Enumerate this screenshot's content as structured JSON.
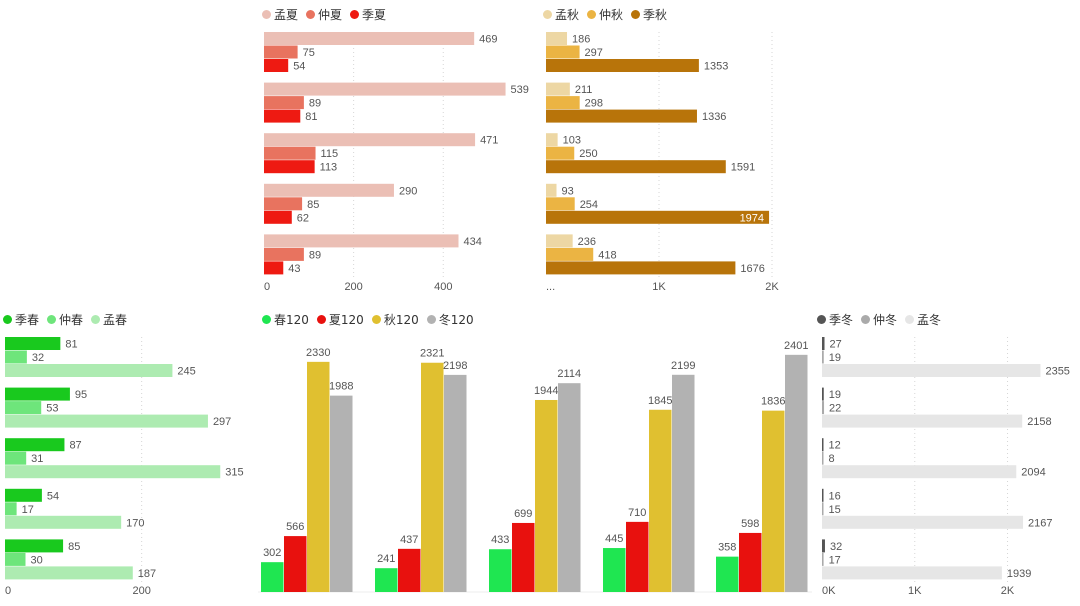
{
  "chart_data": [
    {
      "id": "summer",
      "type": "bar",
      "orientation": "horizontal",
      "series": [
        {
          "name": "孟夏",
          "color": "#EBBFB5",
          "values": [
            469,
            539,
            471,
            290,
            434
          ]
        },
        {
          "name": "仲夏",
          "color": "#E8735F",
          "values": [
            75,
            89,
            115,
            85,
            89
          ]
        },
        {
          "name": "季夏",
          "color": "#EE1A12",
          "values": [
            54,
            81,
            113,
            62,
            43
          ]
        }
      ],
      "xlim": [
        0,
        540
      ],
      "ticks": [
        {
          "value": 0,
          "label": "0"
        },
        {
          "value": 200,
          "label": "200"
        },
        {
          "value": 400,
          "label": "400"
        }
      ]
    },
    {
      "id": "autumn",
      "type": "bar",
      "orientation": "horizontal",
      "series": [
        {
          "name": "孟秋",
          "color": "#EDD7A4",
          "values": [
            186,
            211,
            103,
            93,
            236
          ]
        },
        {
          "name": "仲秋",
          "color": "#EBB443",
          "values": [
            297,
            298,
            250,
            254,
            418
          ]
        },
        {
          "name": "季秋",
          "color": "#B8740A",
          "values": [
            1353,
            1336,
            1591,
            1974,
            1676
          ]
        }
      ],
      "xlim": [
        0,
        2000
      ],
      "ticks": [
        {
          "value": 0,
          "label": "..."
        },
        {
          "value": 1000,
          "label": "1K"
        },
        {
          "value": 2000,
          "label": "2K"
        }
      ]
    },
    {
      "id": "spring",
      "type": "bar",
      "orientation": "horizontal",
      "series": [
        {
          "name": "季春",
          "color": "#19C91E",
          "values": [
            81,
            95,
            87,
            54,
            85
          ]
        },
        {
          "name": "仲春",
          "color": "#6EE57B",
          "values": [
            32,
            53,
            31,
            17,
            30
          ]
        },
        {
          "name": "孟春",
          "color": "#ADEBB1",
          "values": [
            245,
            297,
            315,
            170,
            187
          ]
        }
      ],
      "xlim": [
        0,
        300
      ],
      "ticks": [
        {
          "value": 0,
          "label": "0"
        },
        {
          "value": 200,
          "label": "200"
        }
      ]
    },
    {
      "id": "all120",
      "type": "bar",
      "orientation": "vertical",
      "series": [
        {
          "name": "春120",
          "color": "#1FE651",
          "values": [
            302,
            241,
            433,
            445,
            358
          ]
        },
        {
          "name": "夏120",
          "color": "#E8110E",
          "values": [
            566,
            437,
            699,
            710,
            598
          ]
        },
        {
          "name": "秋120",
          "color": "#E0C030",
          "values": [
            2330,
            2321,
            1944,
            1845,
            1836
          ]
        },
        {
          "name": "冬120",
          "color": "#B2B2B2",
          "values": [
            1988,
            2198,
            2114,
            2199,
            2401
          ]
        }
      ],
      "ylim": [
        0,
        2450
      ]
    },
    {
      "id": "winter",
      "type": "bar",
      "orientation": "horizontal",
      "series": [
        {
          "name": "季冬",
          "color": "#555555",
          "values": [
            27,
            19,
            12,
            16,
            32
          ]
        },
        {
          "name": "仲冬",
          "color": "#AAAAAA",
          "values": [
            19,
            22,
            8,
            15,
            17
          ]
        },
        {
          "name": "孟冬",
          "color": "#E6E6E6",
          "values": [
            2355,
            2158,
            2094,
            2167,
            1939
          ]
        }
      ],
      "xlim": [
        0,
        2350
      ],
      "ticks": [
        {
          "value": 0,
          "label": "0K"
        },
        {
          "value": 1000,
          "label": "1K"
        },
        {
          "value": 2000,
          "label": "2K"
        }
      ]
    }
  ]
}
